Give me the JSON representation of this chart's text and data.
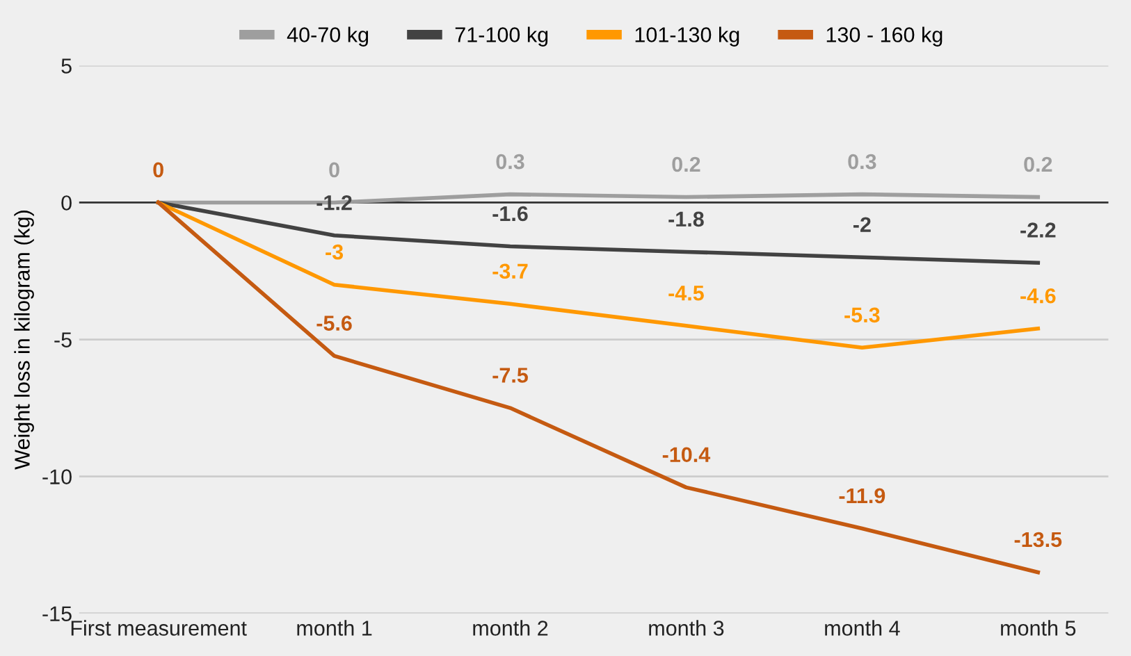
{
  "chart_data": {
    "type": "line",
    "ylabel": "Weight loss in kilogram (kg)",
    "categories": [
      "First measurement",
      "month 1",
      "month 2",
      "month 3",
      "month 4",
      "month 5"
    ],
    "series": [
      {
        "name": "40-70 kg",
        "color": "#9e9e9e",
        "values": [
          0,
          0,
          0.3,
          0.2,
          0.3,
          0.2
        ],
        "value_labels": [
          null,
          "0",
          "0.3",
          "0.2",
          "0.3",
          "0.2"
        ]
      },
      {
        "name": "71-100 kg",
        "color": "#424242",
        "values": [
          0,
          -1.2,
          -1.6,
          -1.8,
          -2,
          -2.2
        ],
        "value_labels": [
          null,
          "-1.2",
          "-1.6",
          "-1.8",
          "-2",
          "-2.2"
        ]
      },
      {
        "name": "101-130 kg",
        "color": "#ff9800",
        "values": [
          0,
          -3,
          -3.7,
          -4.5,
          -5.3,
          -4.6
        ],
        "value_labels": [
          null,
          "-3",
          "-3.7",
          "-4.5",
          "-5.3",
          "-4.6"
        ]
      },
      {
        "name": "130 - 160 kg",
        "color": "#c55a11",
        "values": [
          0,
          -5.6,
          -7.5,
          -10.4,
          -11.9,
          -13.5
        ],
        "value_labels": [
          "0",
          "-5.6",
          "-7.5",
          "-10.4",
          "-11.9",
          "-13.5"
        ]
      }
    ],
    "ylim": [
      -15,
      5
    ],
    "yticks": [
      -15,
      -10,
      -5,
      0,
      5
    ],
    "grid": "y",
    "legend": "top",
    "marker": "none",
    "line_style": "solid",
    "ref_lines": [
      {
        "axis": "y",
        "value": 0,
        "color": "#333333"
      }
    ]
  }
}
